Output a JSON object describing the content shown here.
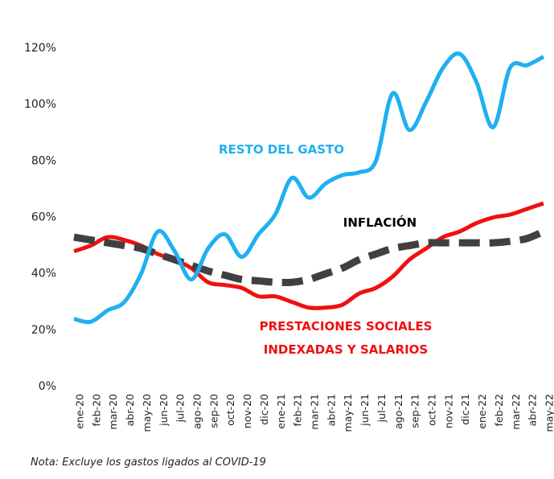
{
  "chart_data": {
    "type": "line",
    "categories": [
      "ene-20",
      "feb-20",
      "mar-20",
      "abr-20",
      "may-20",
      "jun-20",
      "jul-20",
      "ago-20",
      "sep-20",
      "oct-20",
      "nov-20",
      "dic-20",
      "ene-21",
      "feb-21",
      "mar-21",
      "abr-21",
      "may-21",
      "jun-21",
      "jul-21",
      "ago-21",
      "sep-21",
      "oct-21",
      "nov-21",
      "dic-21",
      "ene-22",
      "feb-22",
      "mar-22",
      "abr-22",
      "may-22"
    ],
    "series": [
      {
        "name": "RESTO DEL GASTO",
        "color": "#1fb0f0",
        "dash": false,
        "values": [
          24,
          23,
          27,
          30,
          40,
          55,
          48,
          38,
          49,
          54,
          46,
          54,
          61,
          74,
          67,
          72,
          75,
          76,
          80,
          104,
          91,
          101,
          113,
          118,
          108,
          92,
          113,
          114,
          117
        ]
      },
      {
        "name": "PRESTACIONES SOCIALES INDEXADAS Y SALARIOS",
        "color": "#f01010",
        "dash": false,
        "values": [
          48,
          50,
          53,
          52,
          50,
          47,
          45,
          42,
          37,
          36,
          35,
          32,
          32,
          30,
          28,
          28,
          29,
          33,
          35,
          39,
          45,
          49,
          53,
          55,
          58,
          60,
          61,
          63,
          65
        ]
      },
      {
        "name": "INFLACIÓN",
        "color": "#404040",
        "dash": true,
        "values": [
          53,
          52,
          51,
          50,
          49,
          47,
          45,
          43,
          41,
          39.5,
          38,
          37.5,
          37,
          37,
          38,
          40,
          42,
          45,
          47,
          49,
          50,
          51,
          51,
          51,
          51,
          51,
          51.5,
          52.5,
          55
        ]
      }
    ],
    "ylim": [
      0,
      125
    ],
    "yticks": [
      {
        "value": 0,
        "label": "0%"
      },
      {
        "value": 20,
        "label": "20%"
      },
      {
        "value": 40,
        "label": "40%"
      },
      {
        "value": 60,
        "label": "60%"
      },
      {
        "value": 80,
        "label": "80%"
      },
      {
        "value": 100,
        "label": "100%"
      },
      {
        "value": 120,
        "label": "120%"
      }
    ],
    "note": "Nota: Excluye los gastos ligados al COVID-19"
  }
}
